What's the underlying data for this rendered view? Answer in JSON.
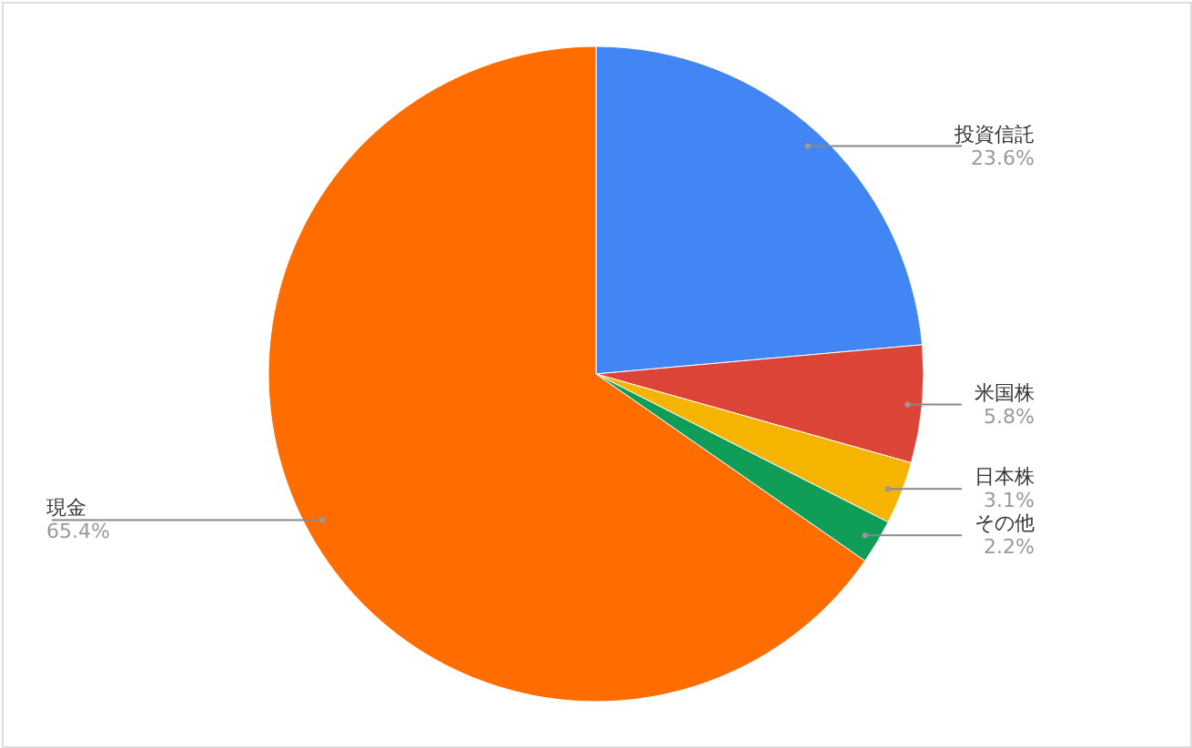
{
  "chart_data": {
    "type": "pie",
    "categories": [
      "投資信託",
      "米国株",
      "日本株",
      "その他",
      "現金"
    ],
    "values": [
      23.6,
      5.8,
      3.1,
      2.2,
      65.4
    ],
    "colors": [
      "#4285f4",
      "#db4437",
      "#f4b400",
      "#0f9d58",
      "#ff6d00"
    ],
    "value_labels": [
      "23.6%",
      "5.8%",
      "3.1%",
      "2.2%",
      "65.4%"
    ]
  }
}
